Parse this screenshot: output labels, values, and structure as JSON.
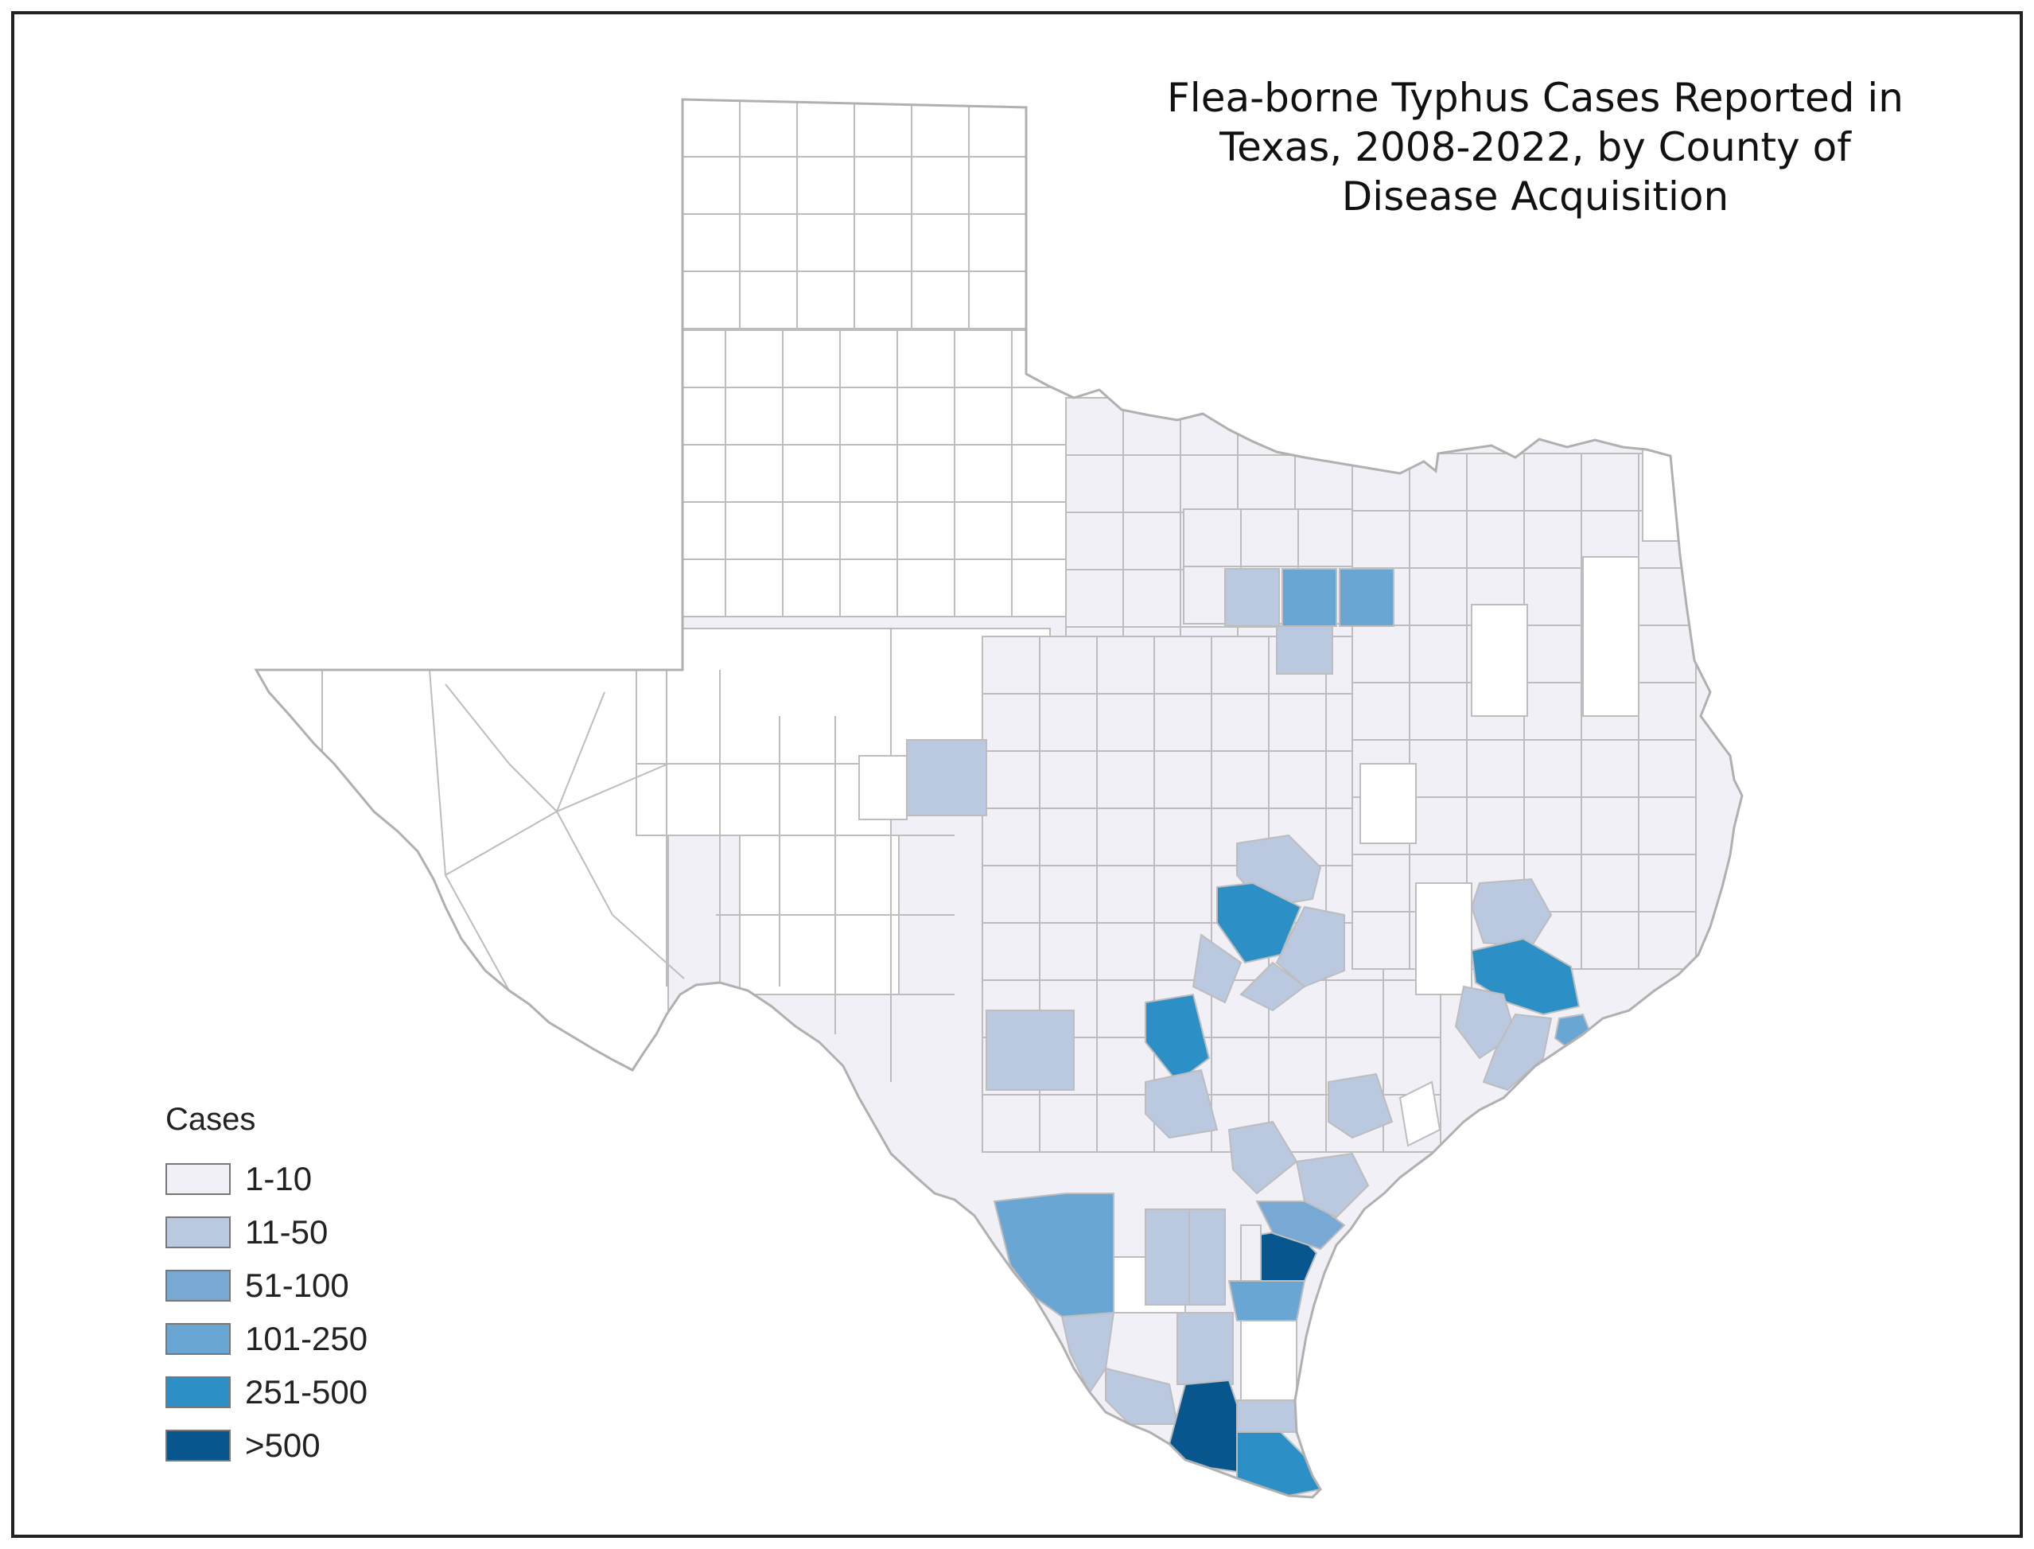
{
  "title_lines": [
    "Flea-borne Typhus Cases Reported in",
    "Texas, 2008-2022, by County of",
    "Disease Acquisition"
  ],
  "legend": {
    "title": "Cases",
    "items": [
      {
        "label": "1-10",
        "color": "#f1f0f6"
      },
      {
        "label": "11-50",
        "color": "#bac8e0"
      },
      {
        "label": "51-100",
        "color": "#77a9d4"
      },
      {
        "label": "101-250",
        "color": "#6aa6d4"
      },
      {
        "label": "251-500",
        "color": "#2c8fc6"
      },
      {
        "label": ">500",
        "color": "#07578e"
      }
    ]
  },
  "colors": {
    "none": "#ffffff",
    "border": "#bdbdbd",
    "frame": "#222222"
  }
}
